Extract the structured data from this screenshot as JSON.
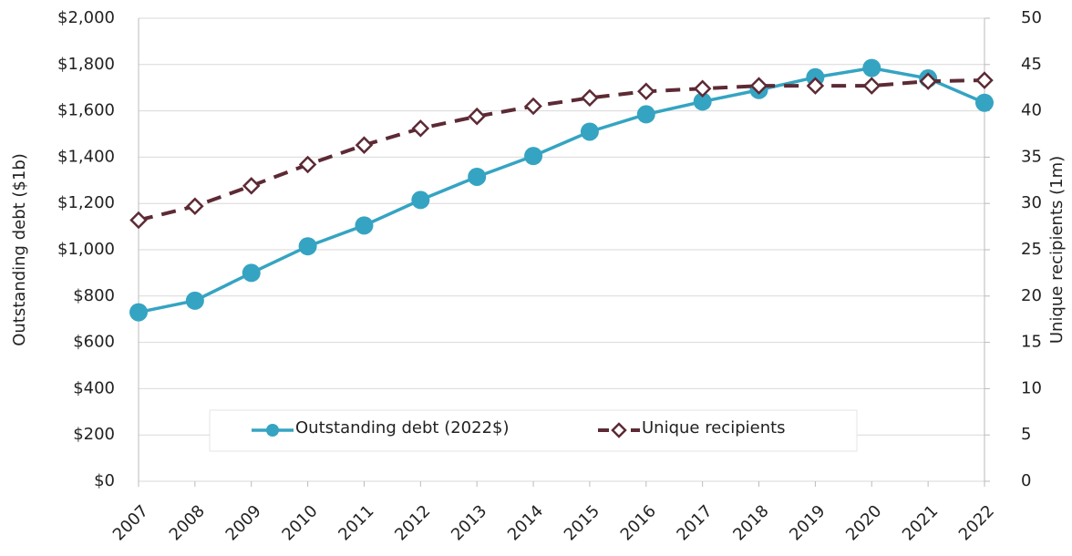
{
  "chart_data": {
    "type": "line",
    "categories": [
      "2007",
      "2008",
      "2009",
      "2010",
      "2011",
      "2012",
      "2013",
      "2014",
      "2015",
      "2016",
      "2017",
      "2018",
      "2019",
      "2020",
      "2021",
      "2022"
    ],
    "series": [
      {
        "name": "Outstanding debt (2022$)",
        "color": "#35a4c2",
        "marker": "circle",
        "dashed": false,
        "values": [
          730,
          780,
          900,
          1015,
          1105,
          1215,
          1315,
          1405,
          1510,
          1585,
          1640,
          1690,
          1745,
          1785,
          1740,
          1635
        ]
      },
      {
        "name": "Unique recipients",
        "color": "#5c2a35",
        "marker": "diamond",
        "dashed": true,
        "axis": "y2",
        "values": [
          28.2,
          29.7,
          31.9,
          34.2,
          36.3,
          38.1,
          39.4,
          40.5,
          41.4,
          42.1,
          42.4,
          42.7,
          42.7,
          42.7,
          43.2,
          43.3
        ]
      }
    ],
    "ylabel": "Outstanding debt ($1b)",
    "y2label": "Unique recipients (1m)",
    "ylim": [
      0,
      2000
    ],
    "yticks": [
      {
        "value": 0,
        "label": "$0"
      },
      {
        "value": 200,
        "label": "$200"
      },
      {
        "value": 400,
        "label": "$400"
      },
      {
        "value": 600,
        "label": "$600"
      },
      {
        "value": 800,
        "label": "$800"
      },
      {
        "value": 1000,
        "label": "$1,000"
      },
      {
        "value": 1200,
        "label": "$1,200"
      },
      {
        "value": 1400,
        "label": "$1,400"
      },
      {
        "value": 1600,
        "label": "$1,600"
      },
      {
        "value": 1800,
        "label": "$1,800"
      },
      {
        "value": 2000,
        "label": "$2,000"
      }
    ],
    "y2lim": [
      0,
      50
    ],
    "y2ticks": [
      0,
      5,
      10,
      15,
      20,
      25,
      30,
      35,
      40,
      45,
      50
    ],
    "grid": true
  }
}
